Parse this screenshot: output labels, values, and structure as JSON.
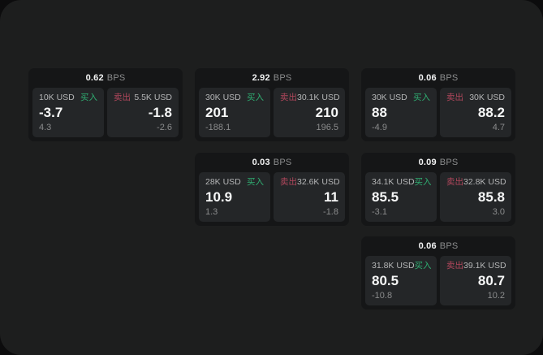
{
  "labels": {
    "buy": "买入",
    "sell": "卖出",
    "bps_unit": "BPS"
  },
  "colors": {
    "panel_bg": "#1d1e1e",
    "card_bg": "#151617",
    "tile_bg": "#242628",
    "buy_green": "#2fae72",
    "sell_red": "#b1475c"
  },
  "cards": [
    {
      "bps": "0.62",
      "buy": {
        "amount": "10K USD",
        "price": "-3.7",
        "change": "4.3"
      },
      "sell": {
        "amount": "5.5K USD",
        "price": "-1.8",
        "change": "-2.6"
      }
    },
    {
      "bps": "2.92",
      "buy": {
        "amount": "30K USD",
        "price": "201",
        "change": "-188.1"
      },
      "sell": {
        "amount": "30.1K USD",
        "price": "210",
        "change": "196.5"
      }
    },
    {
      "bps": "0.06",
      "buy": {
        "amount": "30K USD",
        "price": "88",
        "change": "-4.9"
      },
      "sell": {
        "amount": "30K USD",
        "price": "88.2",
        "change": "4.7"
      }
    },
    {
      "bps": "0.03",
      "buy": {
        "amount": "28K USD",
        "price": "10.9",
        "change": "1.3"
      },
      "sell": {
        "amount": "32.6K USD",
        "price": "11",
        "change": "-1.8"
      }
    },
    {
      "bps": "0.09",
      "buy": {
        "amount": "34.1K USD",
        "price": "85.5",
        "change": "-3.1"
      },
      "sell": {
        "amount": "32.8K USD",
        "price": "85.8",
        "change": "3.0"
      }
    },
    {
      "bps": "0.06",
      "buy": {
        "amount": "31.8K USD",
        "price": "80.5",
        "change": "-10.8"
      },
      "sell": {
        "amount": "39.1K USD",
        "price": "80.7",
        "change": "10.2"
      }
    }
  ]
}
